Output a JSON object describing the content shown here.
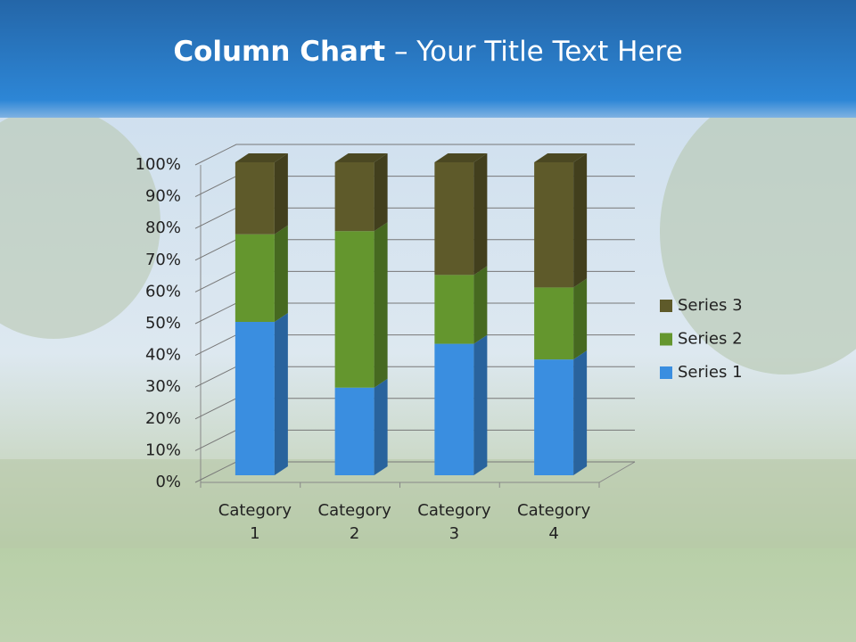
{
  "slide": {
    "title_bold": "Column Chart",
    "title_rest": "– Your Title Text Here"
  },
  "chart_data": {
    "type": "bar",
    "stacked": "percent",
    "three_d": true,
    "categories": [
      "Category 1",
      "Category 2",
      "Category 3",
      "Category 4"
    ],
    "series": [
      {
        "name": "Series 1",
        "color": "#3a8ee0",
        "values": [
          49,
          28,
          42,
          37
        ]
      },
      {
        "name": "Series 2",
        "color": "#64962e",
        "values": [
          28,
          50,
          22,
          23
        ]
      },
      {
        "name": "Series 3",
        "color": "#5e5a2a",
        "values": [
          23,
          22,
          36,
          40
        ]
      }
    ],
    "ylim": [
      0,
      100
    ],
    "yticks": [
      {
        "value": 0,
        "label": "0%"
      },
      {
        "value": 10,
        "label": "10%"
      },
      {
        "value": 20,
        "label": "20%"
      },
      {
        "value": 30,
        "label": "30%"
      },
      {
        "value": 40,
        "label": "40%"
      },
      {
        "value": 50,
        "label": "50%"
      },
      {
        "value": 60,
        "label": "60%"
      },
      {
        "value": 70,
        "label": "70%"
      },
      {
        "value": 80,
        "label": "80%"
      },
      {
        "value": 90,
        "label": "90%"
      },
      {
        "value": 100,
        "label": "100%"
      }
    ],
    "grid": true,
    "legend": "right"
  }
}
